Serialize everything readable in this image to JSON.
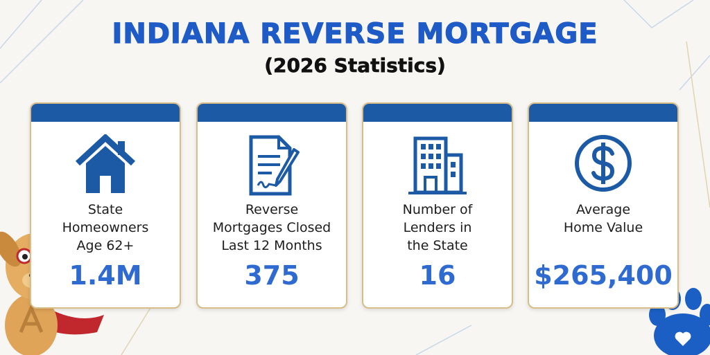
{
  "header": {
    "title": "INDIANA REVERSE MORTGAGE",
    "subtitle": "(2026 Statistics)"
  },
  "cards": [
    {
      "label": [
        "State",
        "Homeowners",
        "Age 62+"
      ],
      "value": "1.4M"
    },
    {
      "label": [
        "Reverse",
        "Mortgages Closed",
        "Last 12 Months"
      ],
      "value": "375"
    },
    {
      "label": [
        "Number of",
        "Lenders in",
        "the State"
      ],
      "value": "16"
    },
    {
      "label": [
        "Average",
        "Home Value"
      ],
      "value": "$265,400"
    }
  ]
}
